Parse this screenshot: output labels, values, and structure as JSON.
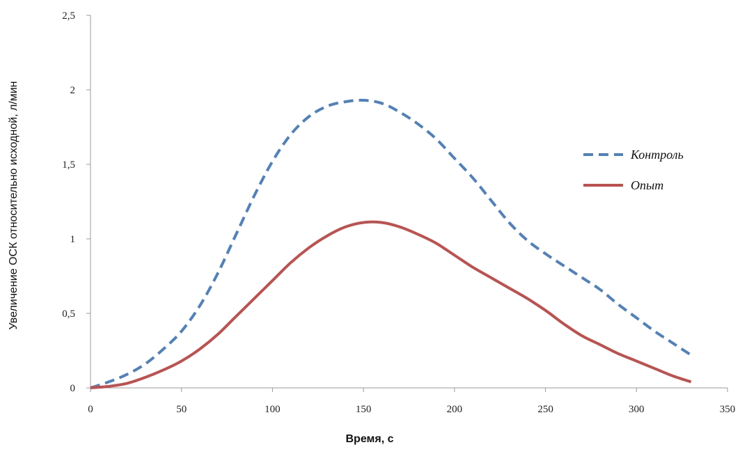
{
  "chart_data": {
    "type": "line",
    "xlabel": "Время, с",
    "ylabel": "Увеличение ОСК относительно исходной, л/мин",
    "xlim": [
      0,
      350
    ],
    "ylim": [
      0,
      2.5
    ],
    "x_ticks": [
      "0",
      "50",
      "100",
      "150",
      "200",
      "250",
      "300",
      "350"
    ],
    "y_ticks": [
      "0",
      "0,5",
      "1",
      "1,5",
      "2",
      "2,5"
    ],
    "grid": false,
    "legend_position": "right",
    "series": [
      {
        "name": "Контроль",
        "color": "#4f81bd",
        "dash": "dashed",
        "points": [
          [
            0,
            0
          ],
          [
            10,
            0.04
          ],
          [
            20,
            0.09
          ],
          [
            30,
            0.16
          ],
          [
            40,
            0.26
          ],
          [
            50,
            0.38
          ],
          [
            60,
            0.55
          ],
          [
            70,
            0.77
          ],
          [
            80,
            1.03
          ],
          [
            90,
            1.29
          ],
          [
            100,
            1.52
          ],
          [
            110,
            1.7
          ],
          [
            120,
            1.82
          ],
          [
            130,
            1.89
          ],
          [
            140,
            1.92
          ],
          [
            150,
            1.93
          ],
          [
            160,
            1.91
          ],
          [
            170,
            1.85
          ],
          [
            180,
            1.77
          ],
          [
            190,
            1.67
          ],
          [
            200,
            1.54
          ],
          [
            210,
            1.41
          ],
          [
            220,
            1.26
          ],
          [
            230,
            1.11
          ],
          [
            240,
            0.99
          ],
          [
            250,
            0.9
          ],
          [
            260,
            0.82
          ],
          [
            270,
            0.74
          ],
          [
            280,
            0.66
          ],
          [
            290,
            0.56
          ],
          [
            300,
            0.47
          ],
          [
            310,
            0.38
          ],
          [
            320,
            0.3
          ],
          [
            330,
            0.22
          ]
        ]
      },
      {
        "name": "Опыт",
        "color": "#c0504d",
        "dash": "solid",
        "points": [
          [
            0,
            0
          ],
          [
            10,
            0.01
          ],
          [
            20,
            0.03
          ],
          [
            30,
            0.07
          ],
          [
            40,
            0.12
          ],
          [
            50,
            0.18
          ],
          [
            60,
            0.26
          ],
          [
            70,
            0.36
          ],
          [
            80,
            0.48
          ],
          [
            90,
            0.6
          ],
          [
            100,
            0.72
          ],
          [
            110,
            0.84
          ],
          [
            120,
            0.94
          ],
          [
            130,
            1.02
          ],
          [
            140,
            1.08
          ],
          [
            150,
            1.11
          ],
          [
            160,
            1.11
          ],
          [
            170,
            1.08
          ],
          [
            180,
            1.03
          ],
          [
            190,
            0.97
          ],
          [
            200,
            0.89
          ],
          [
            210,
            0.81
          ],
          [
            220,
            0.74
          ],
          [
            230,
            0.67
          ],
          [
            240,
            0.6
          ],
          [
            250,
            0.52
          ],
          [
            260,
            0.43
          ],
          [
            270,
            0.35
          ],
          [
            280,
            0.29
          ],
          [
            290,
            0.23
          ],
          [
            300,
            0.18
          ],
          [
            310,
            0.13
          ],
          [
            320,
            0.08
          ],
          [
            330,
            0.04
          ]
        ]
      }
    ]
  }
}
